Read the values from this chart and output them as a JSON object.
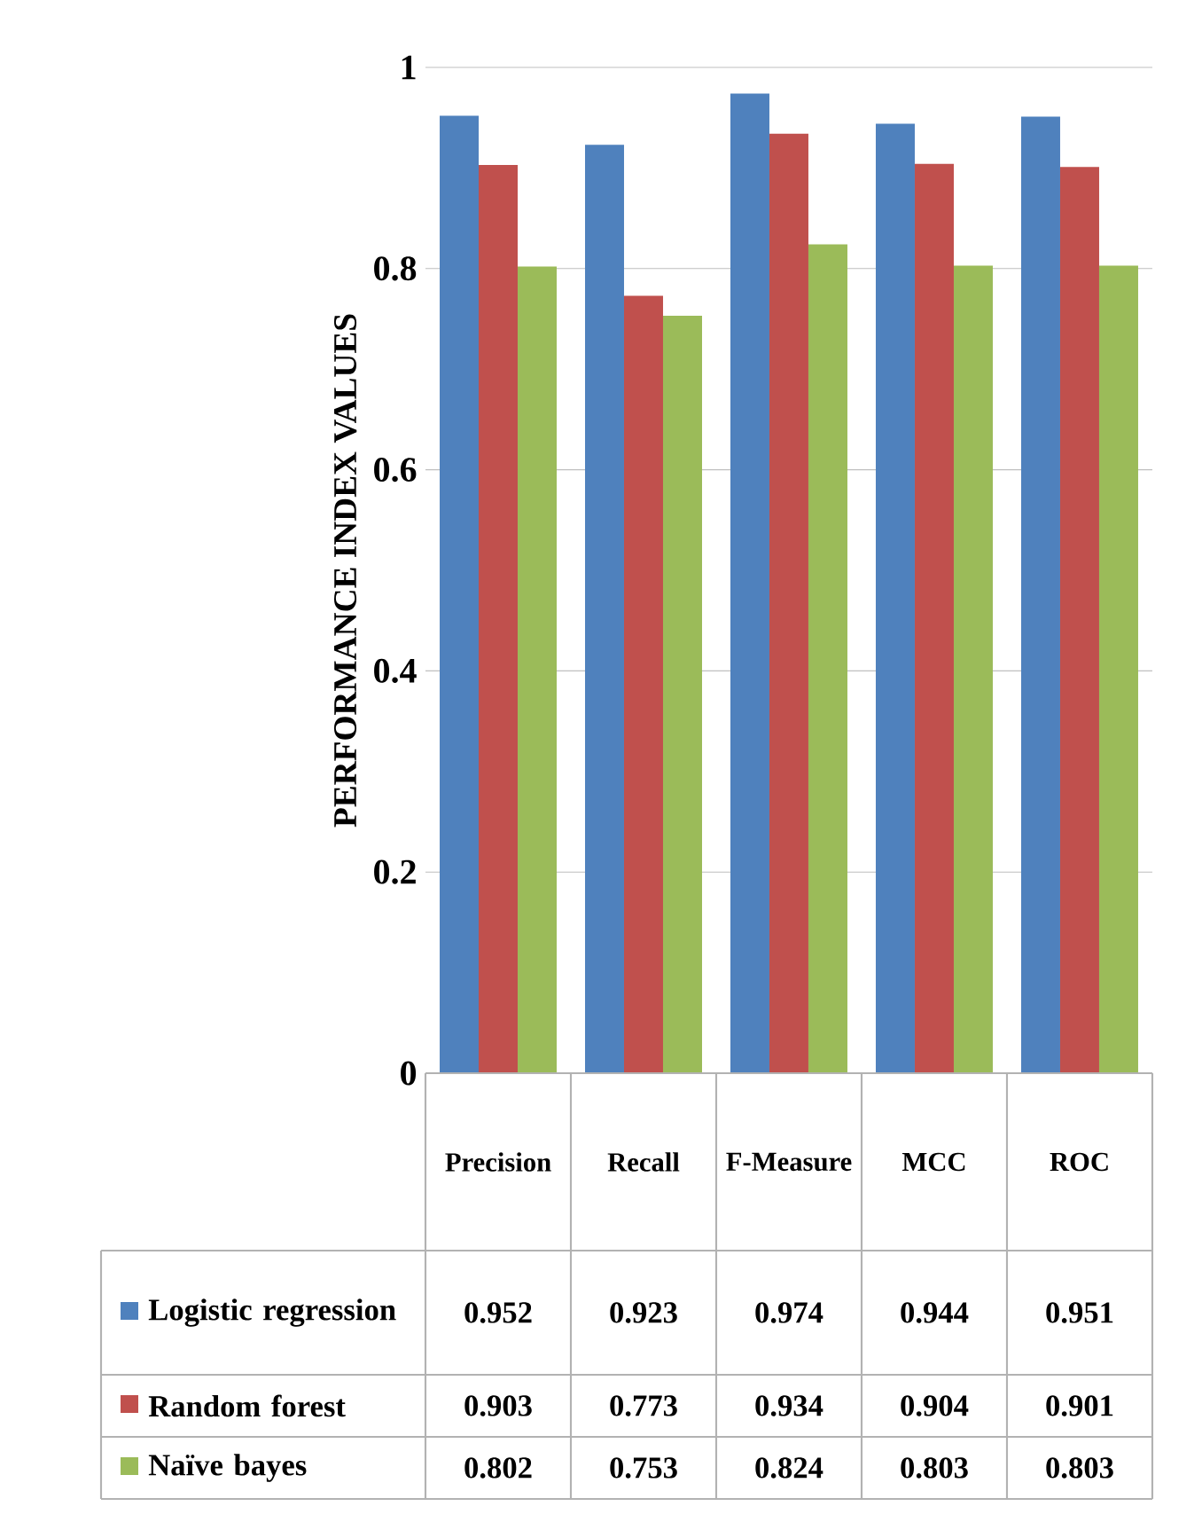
{
  "chart_data": {
    "type": "bar",
    "ylabel": "PERFORMANCE INDEX VALUES",
    "categories": [
      "Precision",
      "Recall",
      "F-Measure",
      "MCC",
      "ROC"
    ],
    "series": [
      {
        "name": "Logistic regression",
        "color": "#4f81bd",
        "values": [
          0.952,
          0.923,
          0.974,
          0.944,
          0.951
        ]
      },
      {
        "name": "Random forest",
        "color": "#c0504d",
        "values": [
          0.903,
          0.773,
          0.934,
          0.904,
          0.901
        ]
      },
      {
        "name": "Naïve bayes",
        "color": "#9bbb59",
        "values": [
          0.802,
          0.753,
          0.824,
          0.803,
          0.803
        ]
      }
    ],
    "ylim": [
      0,
      1
    ],
    "yticks": [
      0,
      0.2,
      0.4,
      0.6,
      0.8,
      1
    ],
    "grid": "y",
    "legend": "bottom",
    "data_labels": true
  }
}
